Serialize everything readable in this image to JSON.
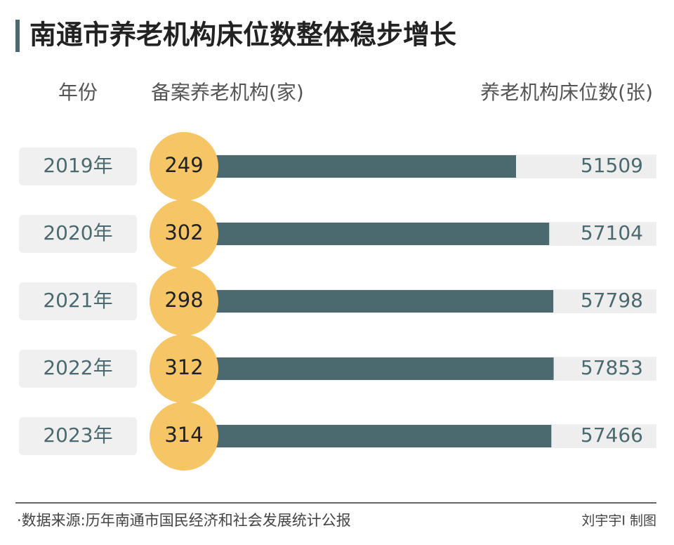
{
  "chart_data": {
    "type": "bar",
    "title": "南通市养老机构床位数整体稳步增长",
    "category_label": "年份",
    "categories": [
      "2019年",
      "2020年",
      "2021年",
      "2022年",
      "2023年"
    ],
    "series": [
      {
        "name": "备案养老机构(家)",
        "color": "#f5c566",
        "values": [
          249,
          302,
          298,
          312,
          314
        ]
      },
      {
        "name": "养老机构床位数(张)",
        "color": "#4a6a6f",
        "values": [
          51509,
          57104,
          57798,
          57853,
          57466
        ]
      }
    ],
    "source": "·数据来源:历年南通市国民经济和社会发展统计公报",
    "credit": "刘宇宇I 制图"
  }
}
